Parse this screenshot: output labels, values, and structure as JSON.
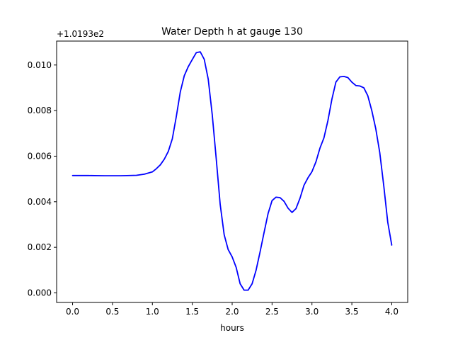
{
  "chart_data": {
    "type": "line",
    "title": "Water Depth h at gauge 130",
    "xlabel": "hours",
    "ylabel": "",
    "offset_label": "+1.0193e2",
    "xlim": [
      -0.2,
      4.2
    ],
    "ylim": [
      -0.00042,
      0.01105
    ],
    "x_ticks": [
      0.0,
      0.5,
      1.0,
      1.5,
      2.0,
      2.5,
      3.0,
      3.5,
      4.0
    ],
    "x_tick_labels": [
      "0.0",
      "0.5",
      "1.0",
      "1.5",
      "2.0",
      "2.5",
      "3.0",
      "3.5",
      "4.0"
    ],
    "y_ticks": [
      0.0,
      0.002,
      0.004,
      0.006,
      0.008,
      0.01
    ],
    "y_tick_labels": [
      "0.000",
      "0.002",
      "0.004",
      "0.006",
      "0.008",
      "0.010"
    ],
    "grid": false,
    "legend": "none",
    "series": [
      {
        "color": "#0000ff",
        "x": [
          0.0,
          0.2,
          0.4,
          0.6,
          0.8,
          0.9,
          1.0,
          1.05,
          1.1,
          1.15,
          1.2,
          1.25,
          1.3,
          1.35,
          1.4,
          1.45,
          1.5,
          1.55,
          1.6,
          1.65,
          1.7,
          1.75,
          1.8,
          1.85,
          1.9,
          1.95,
          2.0,
          2.05,
          2.1,
          2.15,
          2.2,
          2.25,
          2.3,
          2.35,
          2.4,
          2.45,
          2.5,
          2.55,
          2.6,
          2.65,
          2.7,
          2.75,
          2.8,
          2.85,
          2.9,
          2.95,
          3.0,
          3.05,
          3.1,
          3.15,
          3.2,
          3.25,
          3.3,
          3.35,
          3.4,
          3.45,
          3.5,
          3.55,
          3.6,
          3.65,
          3.7,
          3.75,
          3.8,
          3.85,
          3.9,
          3.95,
          4.0
        ],
        "y": [
          0.00515,
          0.00515,
          0.00514,
          0.00514,
          0.00516,
          0.00521,
          0.00531,
          0.00545,
          0.00562,
          0.00587,
          0.00621,
          0.00676,
          0.00774,
          0.00882,
          0.00953,
          0.00993,
          0.01024,
          0.01054,
          0.01058,
          0.01025,
          0.00938,
          0.00783,
          0.0059,
          0.00388,
          0.00255,
          0.0019,
          0.00158,
          0.00112,
          0.0004,
          0.00012,
          0.00012,
          0.0004,
          0.001,
          0.0018,
          0.00265,
          0.00348,
          0.00405,
          0.0042,
          0.00418,
          0.00402,
          0.00372,
          0.00353,
          0.0037,
          0.00415,
          0.00472,
          0.00505,
          0.00532,
          0.00575,
          0.00635,
          0.0068,
          0.00756,
          0.0085,
          0.00925,
          0.00948,
          0.0095,
          0.00945,
          0.00925,
          0.0091,
          0.00908,
          0.009,
          0.00865,
          0.008,
          0.0072,
          0.00615,
          0.0047,
          0.0031,
          0.0021
        ]
      }
    ]
  }
}
